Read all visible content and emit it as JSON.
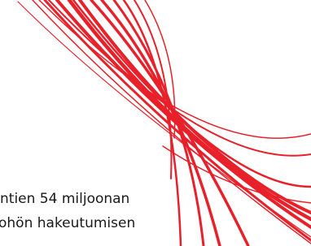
{
  "text_lines": [
    "ntien 54 miljoonan",
    "ohön hakeutumisen"
  ]
}
